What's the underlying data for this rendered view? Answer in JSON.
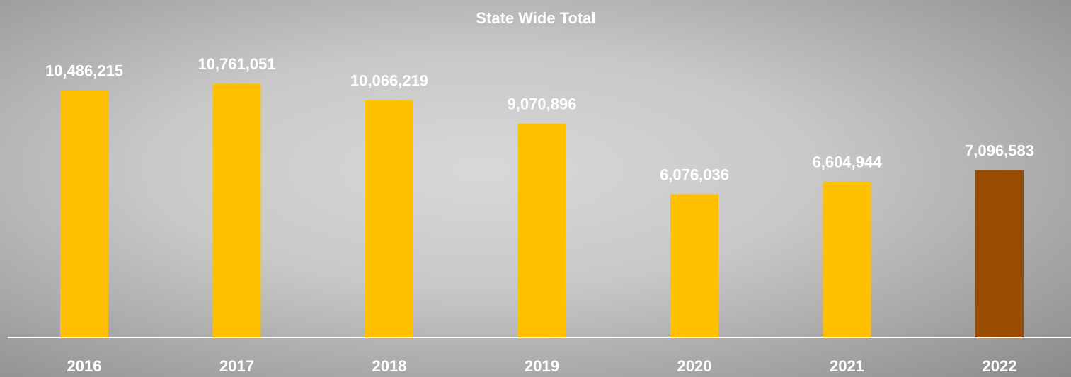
{
  "chart_data": {
    "type": "bar",
    "title": "State Wide Total",
    "categories": [
      "2016",
      "2017",
      "2018",
      "2019",
      "2020",
      "2021",
      "2022"
    ],
    "values": [
      10486215,
      10761051,
      10066219,
      9070896,
      6076036,
      6604944,
      7096583
    ],
    "value_labels": [
      "10,486,215",
      "10,761,051",
      "10,066,219",
      "9,070,896",
      "6,076,036",
      "6,604,944",
      "7,096,583"
    ],
    "colors": [
      "#ffc000",
      "#ffc000",
      "#ffc000",
      "#ffc000",
      "#ffc000",
      "#ffc000",
      "#974c00"
    ],
    "ylim": [
      0,
      12000000
    ]
  }
}
